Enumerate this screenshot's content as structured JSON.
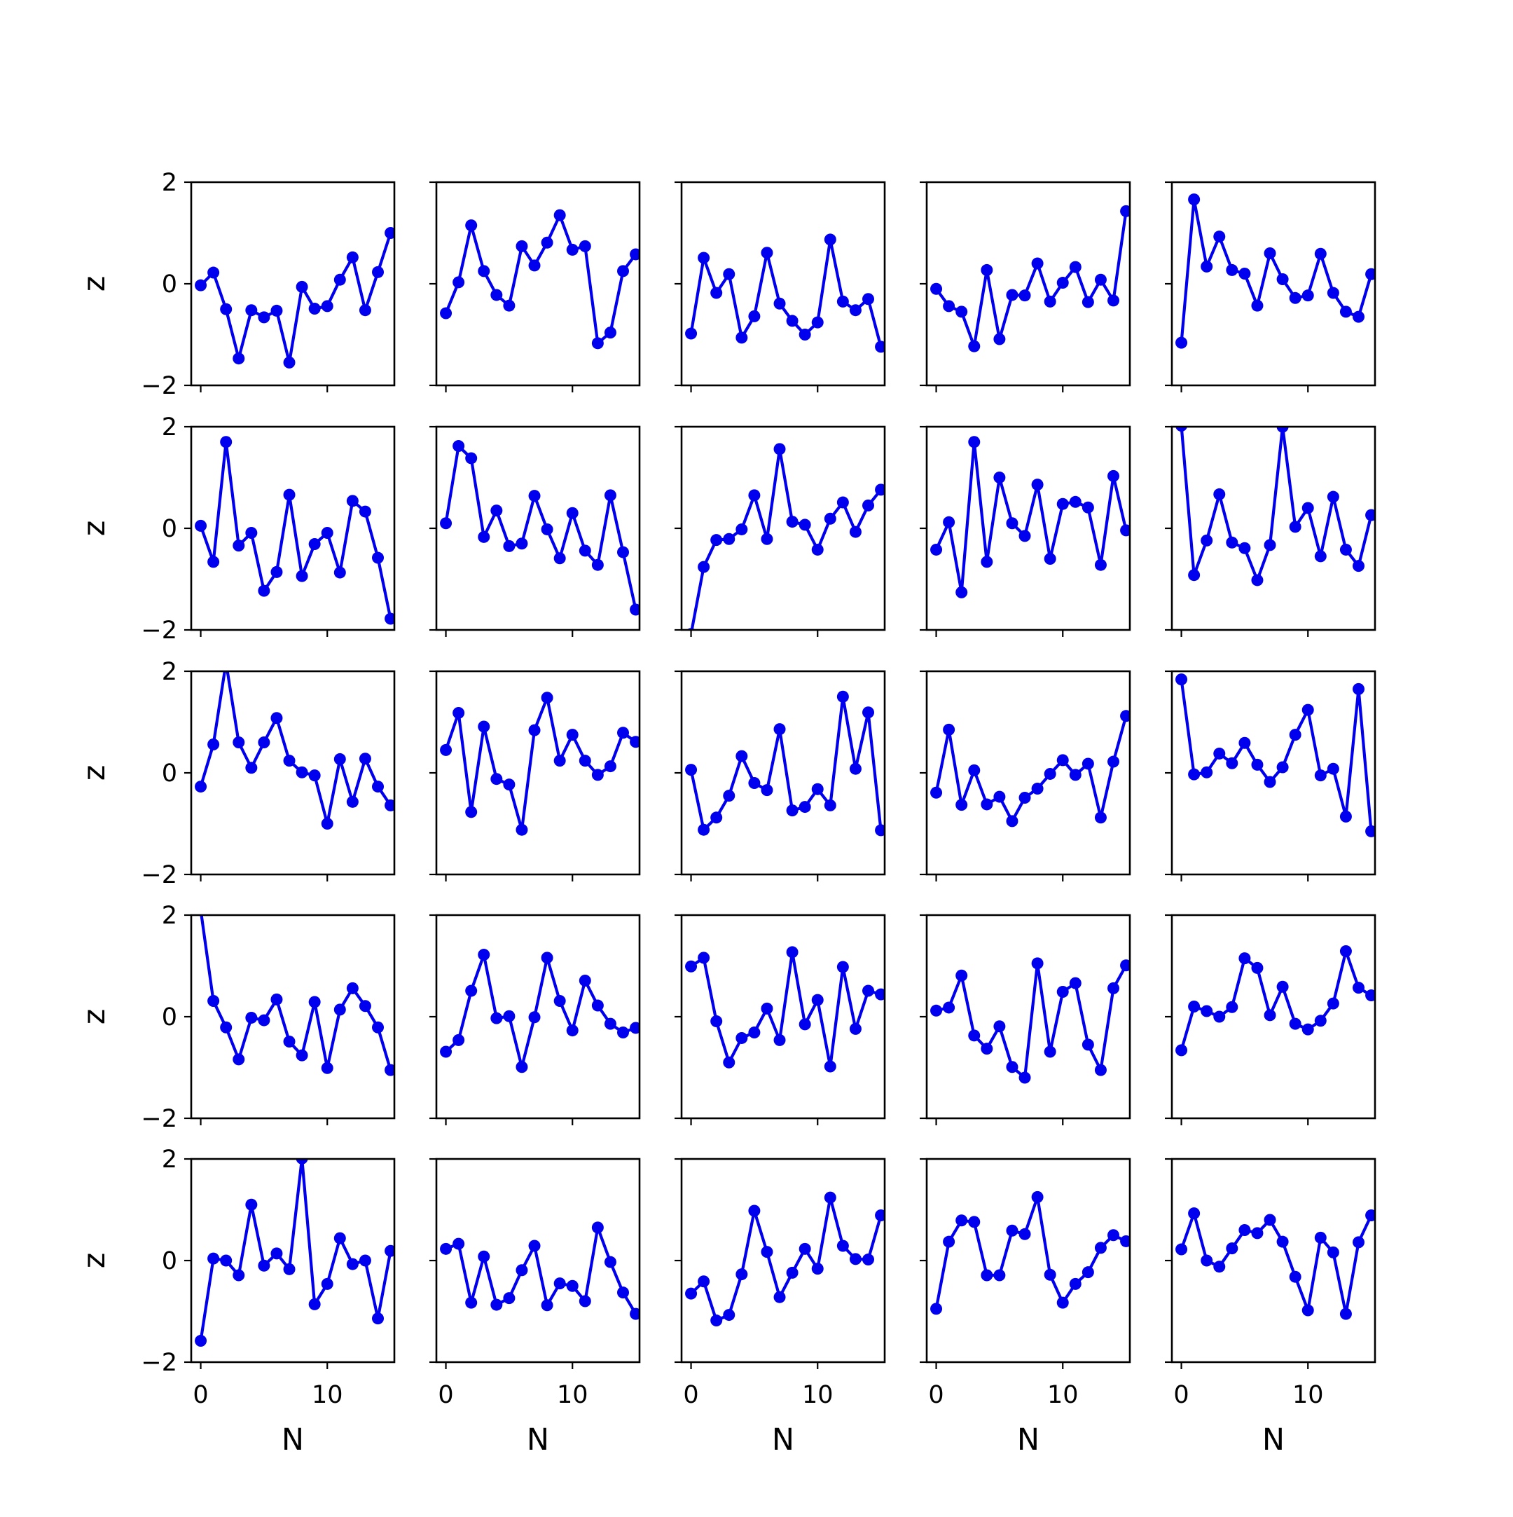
{
  "chart_data": {
    "type": "line",
    "layout": "grid of small multiples, 5 rows by 5 columns",
    "rows": 5,
    "cols": 5,
    "xlabel": "N",
    "ylabel": "z",
    "x": [
      0,
      1,
      2,
      3,
      4,
      5,
      6,
      7,
      8,
      9,
      10,
      11,
      12,
      13,
      14,
      15
    ],
    "xlim": [
      -0.75,
      15.3
    ],
    "ylim": [
      -2,
      2
    ],
    "xticks": [
      0,
      10
    ],
    "xtick_labels": [
      "0",
      "10"
    ],
    "yticks": [
      -2,
      0,
      2
    ],
    "ytick_labels": [
      "−2",
      "0",
      "2"
    ],
    "line_color": "#0000ee",
    "marker": "circle",
    "grid": false,
    "panels": [
      {
        "row": 0,
        "col": 0,
        "values": [
          -0.03,
          0.22,
          -0.5,
          -1.47,
          -0.52,
          -0.66,
          -0.53,
          -1.55,
          -0.06,
          -0.49,
          -0.44,
          0.08,
          0.52,
          -0.52,
          0.23,
          1.0
        ]
      },
      {
        "row": 0,
        "col": 1,
        "values": [
          -0.58,
          0.03,
          1.15,
          0.25,
          -0.22,
          -0.43,
          0.74,
          0.36,
          0.81,
          1.35,
          0.67,
          0.74,
          -1.17,
          -0.96,
          0.25,
          0.58
        ]
      },
      {
        "row": 0,
        "col": 2,
        "values": [
          -0.98,
          0.51,
          -0.18,
          0.19,
          -1.06,
          -0.64,
          0.61,
          -0.39,
          -0.73,
          -1.0,
          -0.76,
          0.87,
          -0.35,
          -0.52,
          -0.3,
          -1.24
        ]
      },
      {
        "row": 0,
        "col": 3,
        "values": [
          -0.1,
          -0.44,
          -0.55,
          -1.23,
          0.27,
          -1.09,
          -0.22,
          -0.23,
          0.4,
          -0.35,
          0.02,
          0.33,
          -0.36,
          0.08,
          -0.33,
          1.43
        ]
      },
      {
        "row": 0,
        "col": 4,
        "values": [
          -1.16,
          1.66,
          0.34,
          0.93,
          0.27,
          0.2,
          -0.43,
          0.6,
          0.09,
          -0.28,
          -0.23,
          0.59,
          -0.18,
          -0.55,
          -0.65,
          0.19
        ]
      },
      {
        "row": 1,
        "col": 0,
        "values": [
          0.05,
          -0.66,
          1.7,
          -0.34,
          -0.09,
          -1.23,
          -0.86,
          0.66,
          -0.94,
          -0.31,
          -0.09,
          -0.87,
          0.54,
          0.33,
          -0.58,
          -1.78
        ]
      },
      {
        "row": 1,
        "col": 1,
        "values": [
          0.1,
          1.62,
          1.38,
          -0.17,
          0.35,
          -0.35,
          -0.3,
          0.64,
          -0.02,
          -0.59,
          0.3,
          -0.44,
          -0.72,
          0.65,
          -0.47,
          -1.6
        ]
      },
      {
        "row": 1,
        "col": 2,
        "values": [
          -2.08,
          -0.76,
          -0.23,
          -0.21,
          -0.02,
          0.65,
          -0.21,
          1.56,
          0.13,
          0.07,
          -0.42,
          0.19,
          0.51,
          -0.07,
          0.45,
          0.76
        ]
      },
      {
        "row": 1,
        "col": 3,
        "values": [
          -0.42,
          0.12,
          -1.26,
          1.7,
          -0.66,
          1.0,
          0.1,
          -0.15,
          0.86,
          -0.6,
          0.48,
          0.52,
          0.41,
          -0.72,
          1.03,
          -0.04
        ]
      },
      {
        "row": 1,
        "col": 4,
        "values": [
          2.02,
          -0.92,
          -0.24,
          0.67,
          -0.28,
          -0.39,
          -1.02,
          -0.33,
          2.0,
          0.03,
          0.4,
          -0.55,
          0.62,
          -0.42,
          -0.74,
          0.26
        ]
      },
      {
        "row": 2,
        "col": 0,
        "values": [
          -0.27,
          0.56,
          2.17,
          0.6,
          0.1,
          0.6,
          1.08,
          0.24,
          0.01,
          -0.05,
          -1.0,
          0.27,
          -0.57,
          0.28,
          -0.27,
          -0.64
        ]
      },
      {
        "row": 2,
        "col": 1,
        "values": [
          0.45,
          1.18,
          -0.77,
          0.91,
          -0.12,
          -0.23,
          -1.12,
          0.84,
          1.48,
          0.24,
          0.75,
          0.24,
          -0.04,
          0.13,
          0.79,
          0.61
        ]
      },
      {
        "row": 2,
        "col": 2,
        "values": [
          0.06,
          -1.12,
          -0.88,
          -0.45,
          0.33,
          -0.2,
          -0.34,
          0.86,
          -0.74,
          -0.67,
          -0.32,
          -0.64,
          1.5,
          0.08,
          1.19,
          -1.13
        ]
      },
      {
        "row": 2,
        "col": 3,
        "values": [
          -0.39,
          0.85,
          -0.63,
          0.05,
          -0.62,
          -0.47,
          -0.95,
          -0.49,
          -0.31,
          -0.02,
          0.25,
          -0.04,
          0.18,
          -0.88,
          0.22,
          1.12
        ]
      },
      {
        "row": 2,
        "col": 4,
        "values": [
          1.84,
          -0.03,
          0.01,
          0.38,
          0.19,
          0.59,
          0.16,
          -0.18,
          0.11,
          0.75,
          1.24,
          -0.05,
          0.08,
          -0.86,
          1.65,
          -1.15
        ]
      },
      {
        "row": 3,
        "col": 0,
        "values": [
          2.1,
          0.31,
          -0.21,
          -0.84,
          -0.02,
          -0.07,
          0.34,
          -0.49,
          -0.76,
          0.29,
          -1.01,
          0.14,
          0.56,
          0.21,
          -0.21,
          -1.05
        ]
      },
      {
        "row": 3,
        "col": 1,
        "values": [
          -0.69,
          -0.46,
          0.51,
          1.22,
          -0.03,
          0.01,
          -0.99,
          -0.01,
          1.16,
          0.31,
          -0.27,
          0.71,
          0.22,
          -0.14,
          -0.31,
          -0.22
        ]
      },
      {
        "row": 3,
        "col": 2,
        "values": [
          0.99,
          1.16,
          -0.09,
          -0.9,
          -0.42,
          -0.31,
          0.16,
          -0.46,
          1.27,
          -0.15,
          0.33,
          -0.98,
          0.98,
          -0.24,
          0.51,
          0.44
        ]
      },
      {
        "row": 3,
        "col": 3,
        "values": [
          0.12,
          0.18,
          0.81,
          -0.37,
          -0.63,
          -0.19,
          -0.99,
          -1.2,
          1.05,
          -0.69,
          0.49,
          0.66,
          -0.55,
          -1.05,
          0.56,
          1.01
        ]
      },
      {
        "row": 3,
        "col": 4,
        "values": [
          -0.66,
          0.2,
          0.11,
          -0.0,
          0.19,
          1.15,
          0.96,
          0.03,
          0.59,
          -0.14,
          -0.25,
          -0.08,
          0.26,
          1.29,
          0.57,
          0.42
        ]
      },
      {
        "row": 4,
        "col": 0,
        "values": [
          -1.58,
          0.04,
          0.0,
          -0.29,
          1.1,
          -0.1,
          0.14,
          -0.17,
          2.01,
          -0.86,
          -0.46,
          0.44,
          -0.07,
          0.0,
          -1.14,
          0.19
        ]
      },
      {
        "row": 4,
        "col": 1,
        "values": [
          0.23,
          0.33,
          -0.83,
          0.08,
          -0.87,
          -0.74,
          -0.19,
          0.29,
          -0.88,
          -0.45,
          -0.5,
          -0.8,
          0.65,
          -0.03,
          -0.63,
          -1.05
        ]
      },
      {
        "row": 4,
        "col": 2,
        "values": [
          -0.65,
          -0.41,
          -1.18,
          -1.07,
          -0.27,
          0.98,
          0.17,
          -0.72,
          -0.24,
          0.23,
          -0.16,
          1.24,
          0.29,
          0.03,
          0.02,
          0.89
        ]
      },
      {
        "row": 4,
        "col": 3,
        "values": [
          -0.95,
          0.37,
          0.79,
          0.76,
          -0.29,
          -0.29,
          0.59,
          0.52,
          1.25,
          -0.28,
          -0.83,
          -0.46,
          -0.23,
          0.25,
          0.5,
          0.38
        ]
      },
      {
        "row": 4,
        "col": 4,
        "values": [
          0.22,
          0.93,
          -0.0,
          -0.12,
          0.24,
          0.6,
          0.54,
          0.8,
          0.37,
          -0.32,
          -0.98,
          0.45,
          0.16,
          -1.05,
          0.36,
          0.89
        ]
      }
    ]
  }
}
